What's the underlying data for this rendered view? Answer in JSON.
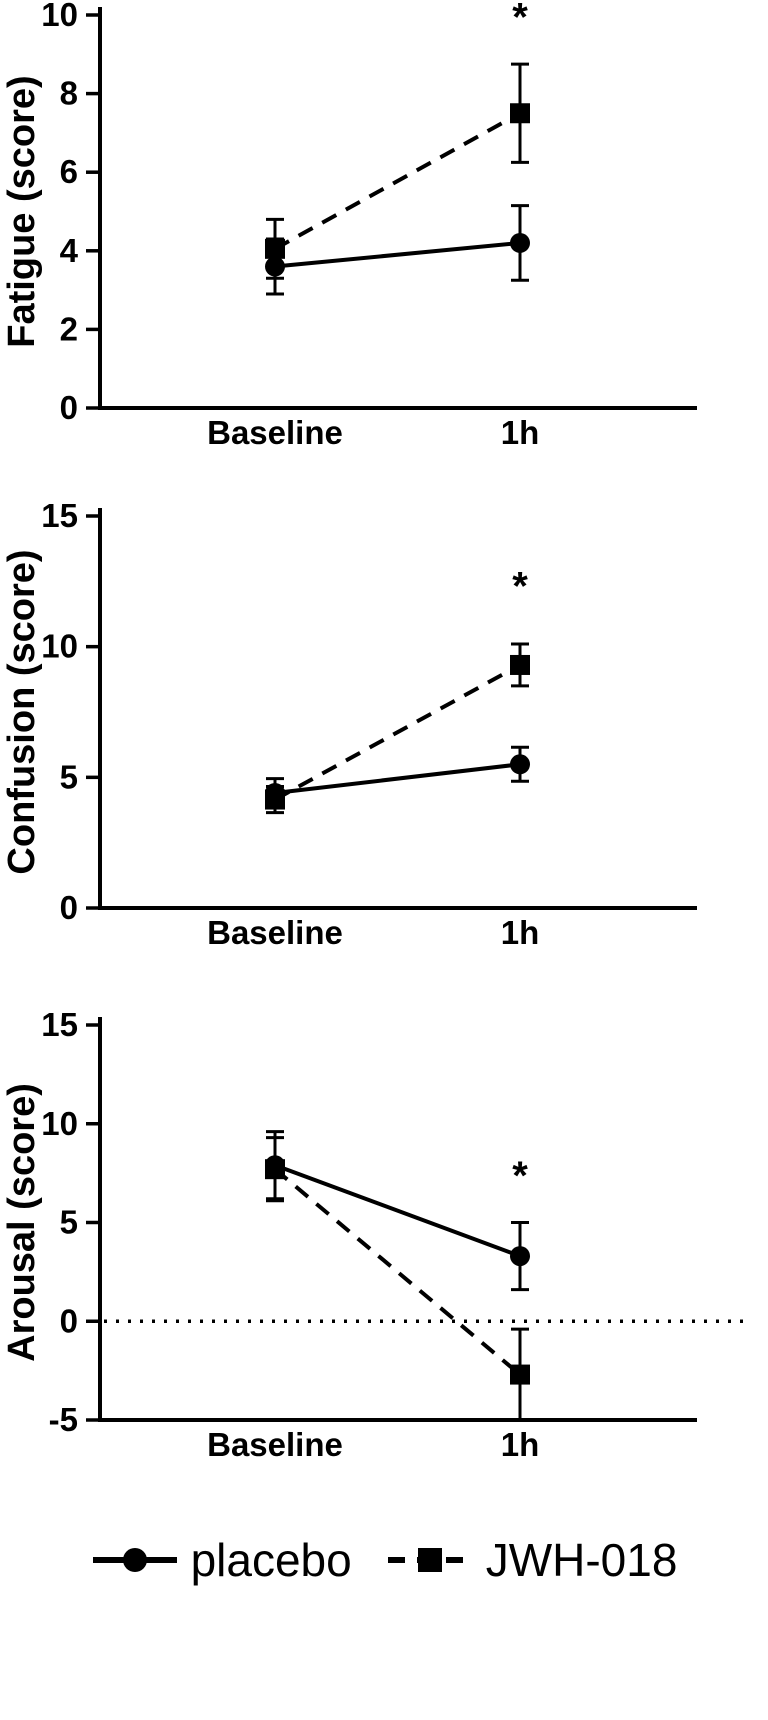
{
  "colors": {
    "ink": "#000000",
    "background": "#ffffff"
  },
  "chart_data": [
    {
      "type": "line",
      "title": "",
      "xlabel": "",
      "ylabel": "Fatigue (score)",
      "categories": [
        "Baseline",
        "1h"
      ],
      "ylim": [
        0,
        10
      ],
      "yticks": [
        0,
        2,
        4,
        6,
        8,
        10
      ],
      "grid": false,
      "series": [
        {
          "name": "placebo",
          "marker": "circle",
          "line_style": "solid",
          "values": [
            3.6,
            4.2
          ],
          "errors": [
            0.7,
            0.95
          ]
        },
        {
          "name": "JWH-018",
          "marker": "square",
          "line_style": "dashed",
          "values": [
            4.05,
            7.5
          ],
          "errors": [
            0.75,
            1.25
          ]
        }
      ],
      "annotations": [
        {
          "text": "*",
          "category_index": 1,
          "y": 9.6
        }
      ]
    },
    {
      "type": "line",
      "title": "",
      "xlabel": "",
      "ylabel": "Confusion (score)",
      "categories": [
        "Baseline",
        "1h"
      ],
      "ylim": [
        0,
        15
      ],
      "yticks": [
        0,
        5,
        10,
        15
      ],
      "grid": false,
      "series": [
        {
          "name": "placebo",
          "marker": "circle",
          "line_style": "solid",
          "values": [
            4.4,
            5.5
          ],
          "errors": [
            0.55,
            0.65
          ]
        },
        {
          "name": "JWH-018",
          "marker": "square",
          "line_style": "dashed",
          "values": [
            4.15,
            9.3
          ],
          "errors": [
            0.5,
            0.8
          ]
        }
      ],
      "annotations": [
        {
          "text": "*",
          "category_index": 1,
          "y": 11.8
        }
      ]
    },
    {
      "type": "line",
      "title": "",
      "xlabel": "",
      "ylabel": "Arousal (score)",
      "categories": [
        "Baseline",
        "1h"
      ],
      "ylim": [
        -5,
        15
      ],
      "yticks": [
        -5,
        0,
        5,
        10,
        15
      ],
      "refline": 0,
      "grid": false,
      "series": [
        {
          "name": "placebo",
          "marker": "circle",
          "line_style": "solid",
          "values": [
            7.9,
            3.3
          ],
          "errors": [
            1.7,
            1.7
          ]
        },
        {
          "name": "JWH-018",
          "marker": "square",
          "line_style": "dashed",
          "values": [
            7.7,
            -2.7
          ],
          "errors": [
            1.6,
            2.3
          ]
        }
      ],
      "annotations": [
        {
          "text": "*",
          "category_index": 1,
          "y": 6.7
        }
      ]
    }
  ],
  "legend": {
    "items": [
      {
        "label": "placebo",
        "marker": "circle",
        "line_style": "solid"
      },
      {
        "label": "JWH-018",
        "marker": "square",
        "line_style": "dashed"
      }
    ]
  }
}
